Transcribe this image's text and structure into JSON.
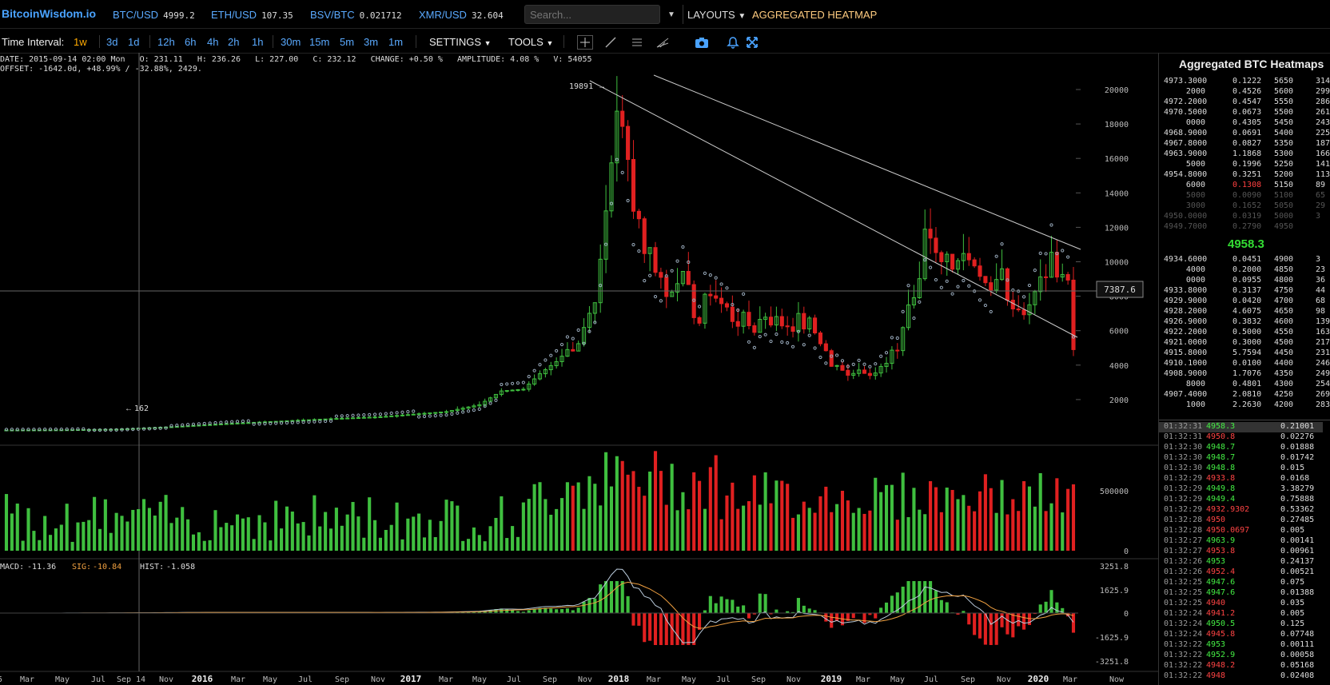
{
  "header": {
    "brand": "BitcoinWisdom.io",
    "tickers": [
      {
        "sym": "BTC/USD",
        "price": "4999.2"
      },
      {
        "sym": "ETH/USD",
        "price": "107.35"
      },
      {
        "sym": "BSV/BTC",
        "price": "0.021712"
      },
      {
        "sym": "XMR/USD",
        "price": "32.604"
      }
    ],
    "search_placeholder": "Search...",
    "layouts": "LAYOUTS",
    "heatmap_link": "AGGREGATED HEATMAP"
  },
  "toolbar": {
    "label": "Time Interval:",
    "intervals": [
      "1w",
      "3d",
      "1d",
      "12h",
      "6h",
      "4h",
      "2h",
      "1h",
      "30m",
      "15m",
      "5m",
      "3m",
      "1m"
    ],
    "active": "1w",
    "settings": "SETTINGS",
    "tools": "TOOLS"
  },
  "info": {
    "line1": "DATE: 2015-09-14 02:00 Mon   O: 231.11   H: 236.26   L: 227.00   C: 232.12   CHANGE: +0.50 %   AMPLITUDE: 4.08 %   V: 54055",
    "line2": "OFFSET: -1642.0d, +48.99% / -32.88%, 2429."
  },
  "chart_data": {
    "type": "candlestick",
    "price_ticks": [
      "20000",
      "18000",
      "16000",
      "14000",
      "12000",
      "10000",
      "8000",
      "6000",
      "4000",
      "2000"
    ],
    "volume_ticks": [
      "500000",
      "0"
    ],
    "macd_ticks": [
      "3251.8",
      "1625.9",
      "0",
      "-1625.9",
      "-3251.8"
    ],
    "x_labels": [
      "5",
      "Mar",
      "May",
      "Jul",
      "Sep 14",
      "Nov",
      "2016",
      "Mar",
      "May",
      "Jul",
      "Sep",
      "Nov",
      "2017",
      "Mar",
      "May",
      "Jul",
      "Sep",
      "Nov",
      "2018",
      "Mar",
      "May",
      "Jul",
      "Sep",
      "Nov",
      "2019",
      "Mar",
      "May",
      "Jul",
      "Sep",
      "Nov",
      "2020",
      "Mar",
      "Now"
    ],
    "peak_label": "19891",
    "low_label": "162",
    "crosshair_price": "7387.6",
    "macd": {
      "macd": "-11.36",
      "sig": "-10.84",
      "hist": "-1.058"
    },
    "anchor_prices": [
      [
        0,
        230
      ],
      [
        10,
        240
      ],
      [
        20,
        280
      ],
      [
        30,
        420
      ],
      [
        40,
        600
      ],
      [
        50,
        750
      ],
      [
        60,
        900
      ],
      [
        68,
        1000
      ],
      [
        74,
        1150
      ],
      [
        80,
        1300
      ],
      [
        86,
        1700
      ],
      [
        90,
        2500
      ],
      [
        94,
        2600
      ],
      [
        97,
        3500
      ],
      [
        100,
        4200
      ],
      [
        104,
        5500
      ],
      [
        106,
        7000
      ],
      [
        108,
        9500
      ],
      [
        110,
        16000
      ],
      [
        111,
        19500
      ],
      [
        112,
        17000
      ],
      [
        114,
        14000
      ],
      [
        116,
        11000
      ],
      [
        118,
        10000
      ],
      [
        120,
        8000
      ],
      [
        122,
        9500
      ],
      [
        124,
        8000
      ],
      [
        126,
        6500
      ],
      [
        128,
        8500
      ],
      [
        130,
        7500
      ],
      [
        132,
        6800
      ],
      [
        134,
        6500
      ],
      [
        136,
        6200
      ],
      [
        138,
        7000
      ],
      [
        140,
        6500
      ],
      [
        142,
        6400
      ],
      [
        144,
        6500
      ],
      [
        146,
        6300
      ],
      [
        148,
        5500
      ],
      [
        150,
        4000
      ],
      [
        152,
        3600
      ],
      [
        154,
        3700
      ],
      [
        156,
        3800
      ],
      [
        158,
        3600
      ],
      [
        160,
        4000
      ],
      [
        162,
        5000
      ],
      [
        164,
        7500
      ],
      [
        166,
        8500
      ],
      [
        167,
        12000
      ],
      [
        169,
        11000
      ],
      [
        171,
        10000
      ],
      [
        173,
        10500
      ],
      [
        175,
        9500
      ],
      [
        177,
        8500
      ],
      [
        179,
        8000
      ],
      [
        181,
        9500
      ],
      [
        183,
        7500
      ],
      [
        185,
        7300
      ],
      [
        187,
        8000
      ],
      [
        189,
        9500
      ],
      [
        191,
        10000
      ],
      [
        192,
        9500
      ],
      [
        193,
        8800
      ],
      [
        194,
        4900
      ]
    ],
    "volume_scale_max": 650000
  },
  "sidebar": {
    "title": "Aggregated BTC Heatmaps",
    "mid_price": "4958.3",
    "asks": [
      [
        "4973.3000",
        "0.1222",
        "5650",
        "314"
      ],
      [
        "2000",
        "0.4526",
        "5600",
        "299"
      ],
      [
        "4972.2000",
        "0.4547",
        "5550",
        "286"
      ],
      [
        "4970.5000",
        "0.0673",
        "5500",
        "261"
      ],
      [
        "0000",
        "0.4305",
        "5450",
        "243"
      ],
      [
        "4968.9000",
        "0.0691",
        "5400",
        "225"
      ],
      [
        "4967.8000",
        "0.0827",
        "5350",
        "187"
      ],
      [
        "4963.9000",
        "1.1868",
        "5300",
        "166"
      ],
      [
        "5000",
        "0.1996",
        "5250",
        "141"
      ],
      [
        "4954.8000",
        "0.3251",
        "5200",
        "113"
      ],
      [
        "6000",
        "0.1308",
        "5150",
        "89"
      ],
      [
        "5000",
        "0.0090",
        "5100",
        "65"
      ],
      [
        "3000",
        "0.1652",
        "5050",
        "29"
      ],
      [
        "4950.0000",
        "0.0319",
        "5000",
        "3"
      ],
      [
        "4949.7000",
        "0.2790",
        "4950",
        ""
      ]
    ],
    "bids": [
      [
        "4934.6000",
        "0.0451",
        "4900",
        "3"
      ],
      [
        "4000",
        "0.2000",
        "4850",
        "23"
      ],
      [
        "0000",
        "0.0955",
        "4800",
        "36"
      ],
      [
        "4933.8000",
        "0.3137",
        "4750",
        "44"
      ],
      [
        "4929.9000",
        "0.0420",
        "4700",
        "68"
      ],
      [
        "4928.2000",
        "4.6075",
        "4650",
        "98"
      ],
      [
        "4926.9000",
        "0.3832",
        "4600",
        "139"
      ],
      [
        "4922.2000",
        "0.5000",
        "4550",
        "163"
      ],
      [
        "4921.0000",
        "0.3000",
        "4500",
        "217"
      ],
      [
        "4915.8000",
        "5.7594",
        "4450",
        "231"
      ],
      [
        "4910.1000",
        "0.0100",
        "4400",
        "246"
      ],
      [
        "4908.9000",
        "1.7076",
        "4350",
        "249"
      ],
      [
        "8000",
        "0.4801",
        "4300",
        "254"
      ],
      [
        "4907.4000",
        "2.0810",
        "4250",
        "269"
      ],
      [
        "1000",
        "2.2630",
        "4200",
        "283"
      ]
    ],
    "trades": [
      [
        "01:32:31",
        "4958.3",
        "0.21001",
        "g"
      ],
      [
        "01:32:31",
        "4950.8",
        "0.02276",
        "r"
      ],
      [
        "01:32:30",
        "4948.7",
        "0.01888",
        "g"
      ],
      [
        "01:32:30",
        "4948.7",
        "0.01742",
        "g"
      ],
      [
        "01:32:30",
        "4948.8",
        "0.015",
        "g"
      ],
      [
        "01:32:29",
        "4933.8",
        "0.0168",
        "r"
      ],
      [
        "01:32:29",
        "4949.8",
        "3.38279",
        "g"
      ],
      [
        "01:32:29",
        "4949.4",
        "0.75888",
        "g"
      ],
      [
        "01:32:29",
        "4932.9302",
        "0.53362",
        "r"
      ],
      [
        "01:32:28",
        "4950",
        "0.27485",
        "r"
      ],
      [
        "01:32:28",
        "4950.0697",
        "0.005",
        "r"
      ],
      [
        "01:32:27",
        "4963.9",
        "0.00141",
        "g"
      ],
      [
        "01:32:27",
        "4953.8",
        "0.00961",
        "r"
      ],
      [
        "01:32:26",
        "4953",
        "0.24137",
        "g"
      ],
      [
        "01:32:26",
        "4952.4",
        "0.00521",
        "r"
      ],
      [
        "01:32:25",
        "4947.6",
        "0.075",
        "g"
      ],
      [
        "01:32:25",
        "4947.6",
        "0.01388",
        "g"
      ],
      [
        "01:32:25",
        "4940",
        "0.035",
        "r"
      ],
      [
        "01:32:24",
        "4941.2",
        "0.005",
        "r"
      ],
      [
        "01:32:24",
        "4950.5",
        "0.125",
        "g"
      ],
      [
        "01:32:24",
        "4945.8",
        "0.07748",
        "r"
      ],
      [
        "01:32:22",
        "4953",
        "0.00111",
        "g"
      ],
      [
        "01:32:22",
        "4952.9",
        "0.00058",
        "g"
      ],
      [
        "01:32:22",
        "4948.2",
        "0.05168",
        "r"
      ],
      [
        "01:32:22",
        "4948",
        "0.02408",
        "r"
      ]
    ]
  },
  "colors": {
    "up": "#3fbf3f",
    "down": "#e02020",
    "accent": "#5aaaff",
    "active": "#ffaa00",
    "heatmap": "#ffcc80"
  }
}
